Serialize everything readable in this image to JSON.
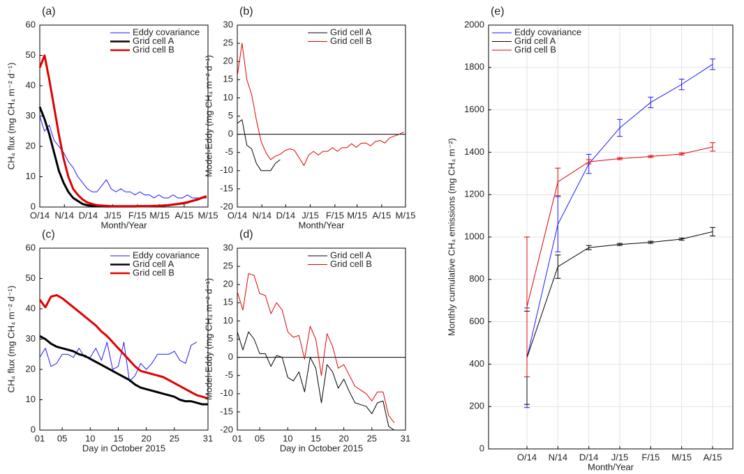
{
  "chart_data": [
    {
      "type": "line",
      "panel": "(a)",
      "xlabel": "Month/Year",
      "ylabel": "CH₄ flux (mg CH₄ m⁻² d⁻¹)",
      "xlim": [
        0,
        212
      ],
      "xticks": [
        {
          "value": 0,
          "label": "O/14"
        },
        {
          "value": 31,
          "label": "N/14"
        },
        {
          "value": 61,
          "label": "D/14"
        },
        {
          "value": 92,
          "label": "J/15"
        },
        {
          "value": 123,
          "label": "F/15"
        },
        {
          "value": 151,
          "label": "M/15"
        },
        {
          "value": 182,
          "label": "A/15"
        },
        {
          "value": 212,
          "label": "M/15"
        }
      ],
      "ylim": [
        0,
        60
      ],
      "yticks": [
        0,
        10,
        20,
        30,
        40,
        50,
        60
      ],
      "grid": false,
      "legend": "upper right",
      "x": [
        0,
        6,
        12,
        18,
        24,
        30,
        36,
        42,
        48,
        54,
        60,
        66,
        72,
        78,
        84,
        90,
        96,
        102,
        108,
        114,
        120,
        126,
        132,
        138,
        144,
        150,
        156,
        162,
        168,
        174,
        180,
        186,
        192,
        198,
        204,
        210
      ],
      "series": [
        {
          "name": "Eddy covariance",
          "color": "#1a1aff",
          "linewidth": 1,
          "values": [
            30,
            25,
            27,
            22,
            20,
            18,
            15,
            13,
            10,
            8,
            6,
            5,
            5,
            7,
            9,
            6,
            5,
            6,
            5,
            5,
            4,
            5,
            4,
            4,
            3,
            4,
            3,
            3,
            4,
            3,
            3,
            4,
            3,
            3,
            3,
            3
          ]
        },
        {
          "name": "Grid cell A",
          "color": "#000000",
          "linewidth": 3,
          "values": [
            33,
            29,
            24,
            18,
            12,
            8,
            5,
            3,
            2,
            1,
            0.6,
            0.4,
            0.3,
            0.3,
            0.2,
            0.2,
            0.2,
            0.2,
            0.2,
            0.2,
            0.2,
            0.3,
            0.3,
            0.3,
            0.3,
            0.4,
            0.5,
            0.6,
            0.8,
            1,
            1.2,
            1.5,
            2,
            2.4,
            3,
            3.5
          ]
        },
        {
          "name": "Grid cell B",
          "color": "#e00000",
          "linewidth": 3,
          "values": [
            46,
            50,
            42,
            33,
            24,
            16,
            10,
            6,
            4,
            2.5,
            1.5,
            1,
            0.6,
            0.5,
            0.4,
            0.3,
            0.3,
            0.3,
            0.3,
            0.3,
            0.3,
            0.3,
            0.3,
            0.3,
            0.4,
            0.4,
            0.5,
            0.6,
            0.8,
            1,
            1.3,
            1.6,
            2,
            2.5,
            3,
            3.6
          ]
        }
      ]
    },
    {
      "type": "line",
      "panel": "(b)",
      "xlabel": "Month/Year",
      "ylabel": "Model-Eddy (mg CH₄ m⁻² d⁻¹)",
      "xlim": [
        0,
        212
      ],
      "xticks": [
        {
          "value": 0,
          "label": "O/14"
        },
        {
          "value": 31,
          "label": "N/14"
        },
        {
          "value": 61,
          "label": "D/14"
        },
        {
          "value": 92,
          "label": "J/15"
        },
        {
          "value": 123,
          "label": "F/15"
        },
        {
          "value": 151,
          "label": "M/15"
        },
        {
          "value": 182,
          "label": "A/15"
        },
        {
          "value": 212,
          "label": "M/15"
        }
      ],
      "ylim": [
        -20,
        30
      ],
      "yticks": [
        -20,
        -15,
        -10,
        -5,
        0,
        5,
        10,
        15,
        20,
        25,
        30
      ],
      "grid": false,
      "zero_line": true,
      "legend": "upper right",
      "x": [
        0,
        6,
        12,
        18,
        24,
        30,
        36,
        42,
        48,
        54,
        60,
        66,
        72,
        78,
        84,
        90,
        96,
        102,
        108,
        114,
        120,
        126,
        132,
        138,
        144,
        150,
        156,
        162,
        168,
        174,
        180,
        186,
        192,
        198,
        204,
        210
      ],
      "series": [
        {
          "name": "Grid cell A",
          "color": "#000000",
          "linewidth": 1,
          "values": [
            3,
            4,
            -3,
            -4,
            -8,
            -10,
            -10,
            -10,
            -8,
            -7,
            null,
            null,
            null,
            null,
            null,
            null,
            null,
            null,
            null,
            null,
            null,
            null,
            null,
            null,
            null,
            null,
            null,
            null,
            null,
            null,
            null,
            null,
            null,
            null,
            null,
            null
          ]
        },
        {
          "name": "Grid cell B",
          "color": "#e00000",
          "linewidth": 1,
          "values": [
            16,
            25,
            15,
            11,
            4,
            -2,
            -5,
            -7,
            -6,
            -5.5,
            -4.5,
            -4,
            -4.4,
            -6.5,
            -8.6,
            -5.7,
            -4.7,
            -5.7,
            -4.7,
            -4.7,
            -3.7,
            -4.7,
            -3.7,
            -3.7,
            -2.6,
            -3.6,
            -2.5,
            -2.4,
            -3.2,
            -2,
            -1.7,
            -2.4,
            -1,
            -0.5,
            0,
            0.6
          ]
        }
      ]
    },
    {
      "type": "line",
      "panel": "(c)",
      "xlabel": "Day in October 2015",
      "ylabel": "CH₄ flux (mg CH₄ m⁻² d⁻¹)",
      "xlim": [
        1,
        31
      ],
      "xticks": [
        {
          "value": 1,
          "label": "01"
        },
        {
          "value": 5,
          "label": "05"
        },
        10,
        15,
        20,
        25,
        31
      ],
      "ylim": [
        0,
        60
      ],
      "yticks": [
        0,
        10,
        20,
        30,
        40,
        50,
        60
      ],
      "grid": false,
      "legend": "upper right",
      "x": [
        1,
        2,
        3,
        4,
        5,
        6,
        7,
        8,
        9,
        10,
        11,
        12,
        13,
        14,
        15,
        16,
        17,
        18,
        19,
        20,
        21,
        22,
        23,
        24,
        25,
        26,
        27,
        28,
        29,
        30,
        31
      ],
      "series": [
        {
          "name": "Eddy covariance",
          "color": "#1a1aff",
          "linewidth": 1,
          "values": [
            24,
            27,
            21,
            22,
            25,
            25,
            24,
            27,
            24,
            24,
            27,
            23,
            29,
            20,
            21,
            29,
            16,
            18,
            22,
            20,
            22,
            25,
            25,
            25,
            26,
            23,
            22,
            28,
            29,
            null,
            null
          ]
        },
        {
          "name": "Grid cell A",
          "color": "#000000",
          "linewidth": 3,
          "values": [
            31,
            30,
            28.5,
            27.5,
            27,
            26.5,
            26,
            25,
            24.5,
            23.5,
            22.5,
            21.5,
            20.5,
            19.5,
            18.5,
            17.5,
            16.5,
            15,
            14,
            13.5,
            13,
            12.5,
            12,
            11.5,
            11,
            10,
            9.5,
            9.5,
            9,
            8.5,
            8.5
          ]
        },
        {
          "name": "Grid cell B",
          "color": "#e00000",
          "linewidth": 3,
          "values": [
            43,
            40.5,
            44,
            44.5,
            43.5,
            42,
            40.5,
            39,
            37.5,
            36,
            34.5,
            32.5,
            31,
            29,
            27,
            25,
            23,
            21,
            19.5,
            19,
            18.5,
            18,
            17.5,
            16.5,
            15.5,
            14.5,
            13.5,
            12.5,
            11.5,
            11,
            10.5
          ]
        }
      ]
    },
    {
      "type": "line",
      "panel": "(d)",
      "xlabel": "Day in October 2015",
      "ylabel": "Model-Eddy (mg CH₄ m⁻² d⁻¹)",
      "xlim": [
        1,
        31
      ],
      "xticks": [
        {
          "value": 1,
          "label": "01"
        },
        {
          "value": 5,
          "label": "05"
        },
        10,
        15,
        20,
        25,
        31
      ],
      "ylim": [
        -20,
        30
      ],
      "yticks": [
        -20,
        -15,
        -10,
        -5,
        0,
        5,
        10,
        15,
        20,
        25,
        30
      ],
      "grid": false,
      "zero_line": true,
      "legend": "upper right",
      "x": [
        1,
        2,
        3,
        4,
        5,
        6,
        7,
        8,
        9,
        10,
        11,
        12,
        13,
        14,
        15,
        16,
        17,
        18,
        19,
        20,
        21,
        22,
        23,
        24,
        25,
        26,
        27,
        28,
        29,
        30,
        31
      ],
      "series": [
        {
          "name": "Grid cell A",
          "color": "#000000",
          "linewidth": 1,
          "values": [
            7,
            2,
            7,
            5,
            1,
            1,
            -2.5,
            0.5,
            0,
            -5.5,
            -6.5,
            -4,
            -9.5,
            0,
            -3,
            -12.5,
            -2,
            -4,
            -8.5,
            -6,
            -9.5,
            -12.5,
            -13,
            -13.5,
            -15.5,
            -12.5,
            -12,
            -19,
            -20,
            null,
            null
          ]
        },
        {
          "name": "Grid cell B",
          "color": "#e00000",
          "linewidth": 1,
          "values": [
            18,
            13,
            23,
            22.5,
            17.5,
            17,
            12,
            15,
            13,
            7,
            5.5,
            6,
            -0.5,
            8.5,
            5,
            -5,
            6.5,
            3,
            -3,
            -2,
            -5,
            -8,
            -9,
            -10,
            -12,
            -9.5,
            -9.5,
            -16,
            -18,
            null,
            null
          ]
        }
      ]
    },
    {
      "type": "errorbar",
      "panel": "(e)",
      "xlabel": "Month/Year",
      "ylabel": "Monthly cumulative CH₄ emissions (mg CH₄ m⁻²)",
      "categories": [
        "O/14",
        "N/14",
        "D/14",
        "J/15",
        "F/15",
        "M/15",
        "A/15"
      ],
      "ylim": [
        0,
        2000
      ],
      "yticks": [
        0,
        200,
        400,
        600,
        800,
        1000,
        1200,
        1400,
        1600,
        1800,
        2000
      ],
      "grid": true,
      "legend": "upper left",
      "series": [
        {
          "name": "Eddy covariance",
          "color": "#1a1aff",
          "linewidth": 1,
          "values": [
            430,
            1060,
            1345,
            1515,
            1635,
            1720,
            1815
          ],
          "errors": [
            235,
            130,
            45,
            40,
            25,
            25,
            25
          ]
        },
        {
          "name": "Grid cell A",
          "color": "#000000",
          "linewidth": 1,
          "values": [
            430,
            860,
            950,
            965,
            975,
            990,
            1025
          ],
          "errors": [
            220,
            55,
            10,
            5,
            5,
            5,
            20
          ]
        },
        {
          "name": "Grid cell B",
          "color": "#e00000",
          "linewidth": 1,
          "values": [
            670,
            1260,
            1355,
            1370,
            1380,
            1392,
            1425
          ],
          "errors": [
            330,
            65,
            10,
            5,
            5,
            5,
            20
          ]
        }
      ]
    }
  ]
}
